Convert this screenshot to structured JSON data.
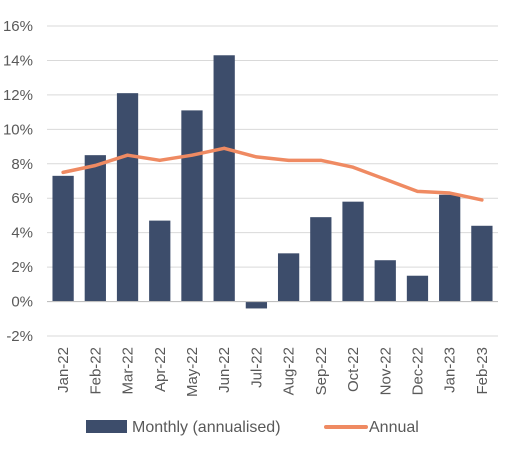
{
  "chart_data": {
    "type": "bar",
    "title": "",
    "xlabel": "",
    "ylabel": "",
    "categories": [
      "Jan-22",
      "Feb-22",
      "Mar-22",
      "Apr-22",
      "May-22",
      "Jun-22",
      "Jul-22",
      "Aug-22",
      "Sep-22",
      "Oct-22",
      "Nov-22",
      "Dec-22",
      "Jan-23",
      "Feb-23"
    ],
    "series": [
      {
        "name": "Monthly (annualised)",
        "type": "bar",
        "color": "#3d4d6b",
        "values": [
          7.3,
          8.5,
          12.1,
          4.7,
          11.1,
          14.3,
          -0.4,
          2.8,
          4.9,
          5.8,
          2.4,
          1.5,
          6.2,
          4.4
        ]
      },
      {
        "name": "Annual",
        "type": "line",
        "color": "#ef8a62",
        "values": [
          7.5,
          7.9,
          8.5,
          8.2,
          8.5,
          8.9,
          8.4,
          8.2,
          8.2,
          7.8,
          7.1,
          6.4,
          6.3,
          5.9
        ]
      }
    ],
    "y_ticks": [
      "-2%",
      "0%",
      "2%",
      "4%",
      "6%",
      "8%",
      "10%",
      "12%",
      "14%",
      "16%"
    ],
    "ylim": [
      -2,
      16
    ],
    "y_unit": "%",
    "grid": true,
    "legend_position": "bottom"
  }
}
